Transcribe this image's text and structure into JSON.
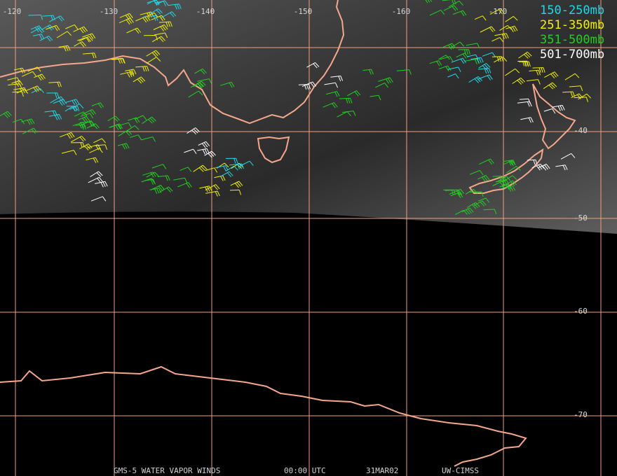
{
  "map": {
    "longitude_labels": [
      "-120",
      "-130",
      "-140",
      "-150",
      "-160",
      "-170"
    ],
    "latitude_labels": [
      "-40",
      "-50",
      "-60",
      "-70"
    ],
    "legend": [
      {
        "label": "150-250mb",
        "color": "#22d8e8"
      },
      {
        "label": "251-350mb",
        "color": "#f2f200"
      },
      {
        "label": "351-500mb",
        "color": "#22d022"
      },
      {
        "label": "501-700mb",
        "color": "#ffffff"
      }
    ],
    "footer": [
      "GMS-5 WATER VAPOR WINDS",
      "00:00 UTC",
      "31MAR02",
      "UW-CIMSS"
    ]
  }
}
